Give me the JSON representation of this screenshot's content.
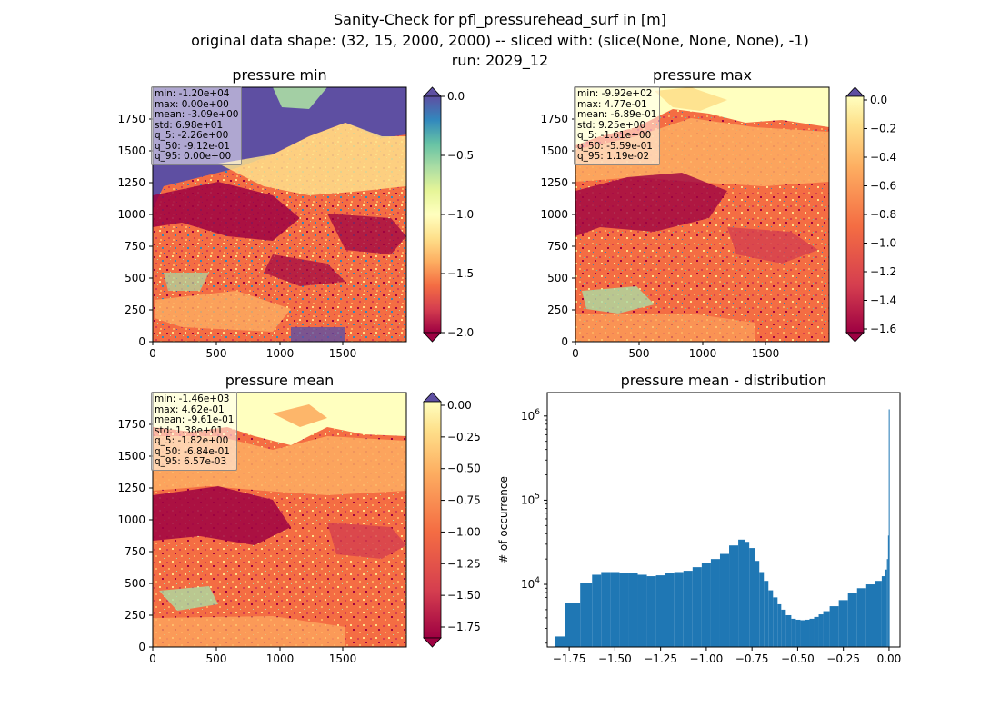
{
  "figure": {
    "title_line1": "Sanity-Check for pfl_pressurehead_surf in [m]",
    "title_line2": "original data shape: (32, 15, 2000, 2000) -- sliced with: (slice(None, None, None), -1)",
    "title_line3": "run: 2029_12"
  },
  "colormap": "Spectral",
  "colors": {
    "hist_bar": "#1f77b4",
    "over_color": "#5e4fa2",
    "under_color": "#9e0142"
  },
  "map_axis_ticks": [
    "0",
    "500",
    "1000",
    "1500"
  ],
  "map_axis_ticks_y": [
    "0",
    "250",
    "500",
    "750",
    "1000",
    "1250",
    "1500",
    "1750"
  ],
  "panels": {
    "min": {
      "title": "pressure min",
      "stats": [
        "min: -1.20e+04",
        "max: 0.00e+00",
        "mean: -3.09e+00",
        "std: 6.98e+01",
        "q_5: -2.26e+00",
        "q_50: -9.12e-01",
        "q_95: 0.00e+00"
      ],
      "colorbar_ticks": [
        "0.0",
        "−0.5",
        "−1.0",
        "−1.5",
        "−2.0"
      ],
      "colorbar_values": [
        0.0,
        -0.5,
        -1.0,
        -1.5,
        -2.0
      ],
      "vmin": -2.26,
      "vmax": 0.0,
      "extend": "both"
    },
    "max": {
      "title": "pressure max",
      "stats": [
        "min: -9.92e+02",
        "max: 4.77e-01",
        "mean: -6.89e-01",
        "std: 9.25e+00",
        "q_5: -1.61e+00",
        "q_50: -5.59e-01",
        "q_95: 1.19e-02"
      ],
      "colorbar_ticks": [
        "0.0",
        "−0.2",
        "−0.4",
        "−0.6",
        "−0.8",
        "−1.0",
        "−1.2",
        "−1.4",
        "−1.6"
      ],
      "colorbar_values": [
        0.0,
        -0.2,
        -0.4,
        -0.6,
        -0.8,
        -1.0,
        -1.2,
        -1.4,
        -1.6
      ],
      "vmin": -1.61,
      "vmax": 0.0119,
      "extend": "both"
    },
    "mean": {
      "title": "pressure mean",
      "stats": [
        "min: -1.46e+03",
        "max: 4.62e-01",
        "mean: -9.61e-01",
        "std: 1.38e+01",
        "q_5: -1.82e+00",
        "q_50: -6.84e-01",
        "q_95: 6.57e-03"
      ],
      "colorbar_ticks": [
        "0.00",
        "−0.25",
        "−0.50",
        "−0.75",
        "−1.00",
        "−1.25",
        "−1.50",
        "−1.75"
      ],
      "colorbar_values": [
        0.0,
        -0.25,
        -0.5,
        -0.75,
        -1.0,
        -1.25,
        -1.5,
        -1.75
      ],
      "vmin": -1.82,
      "vmax": 0.00657,
      "extend": "both"
    }
  },
  "chart_data": {
    "type": "bar",
    "title": "pressure mean - distribution",
    "ylabel": "# of occurrence",
    "xlabel": "",
    "yscale": "log",
    "xlim": [
      -1.87,
      0.06
    ],
    "ylim": [
      1800,
      1900000
    ],
    "xticks": [
      -1.75,
      -1.5,
      -1.25,
      -1.0,
      -0.75,
      -0.5,
      -0.25,
      0.0
    ],
    "xtick_labels": [
      "−1.75",
      "−1.50",
      "−1.25",
      "−1.00",
      "−0.75",
      "−0.50",
      "−0.25",
      "0.00"
    ],
    "yticks": [
      10000,
      100000,
      1000000
    ],
    "ytick_labels": [
      "10^4",
      "10^5",
      "10^6"
    ],
    "bins": {
      "x": [
        -1.82,
        -1.73,
        -1.65,
        -1.6,
        -1.55,
        -1.5,
        -1.45,
        -1.4,
        -1.35,
        -1.3,
        -1.25,
        -1.2,
        -1.15,
        -1.1,
        -1.05,
        -1.0,
        -0.95,
        -0.9,
        -0.85,
        -0.8,
        -0.78,
        -0.75,
        -0.72,
        -0.7,
        -0.67,
        -0.65,
        -0.62,
        -0.6,
        -0.58,
        -0.55,
        -0.52,
        -0.5,
        -0.47,
        -0.45,
        -0.42,
        -0.4,
        -0.37,
        -0.35,
        -0.3,
        -0.25,
        -0.2,
        -0.15,
        -0.1,
        -0.05,
        -0.03,
        -0.015,
        -0.008,
        -0.003,
        0.0,
        0.006
      ],
      "y": [
        2400,
        6000,
        10500,
        13000,
        14000,
        14000,
        13500,
        13500,
        13000,
        12500,
        12800,
        13500,
        14000,
        14500,
        16000,
        18000,
        20000,
        23000,
        29000,
        34000,
        32000,
        27000,
        19000,
        14000,
        11000,
        8500,
        7000,
        5800,
        5000,
        4300,
        3900,
        3800,
        3750,
        3800,
        3900,
        4100,
        4400,
        4800,
        5500,
        6500,
        8000,
        9000,
        10000,
        11000,
        12500,
        15000,
        20000,
        38000,
        1200000,
        1800
      ]
    }
  }
}
